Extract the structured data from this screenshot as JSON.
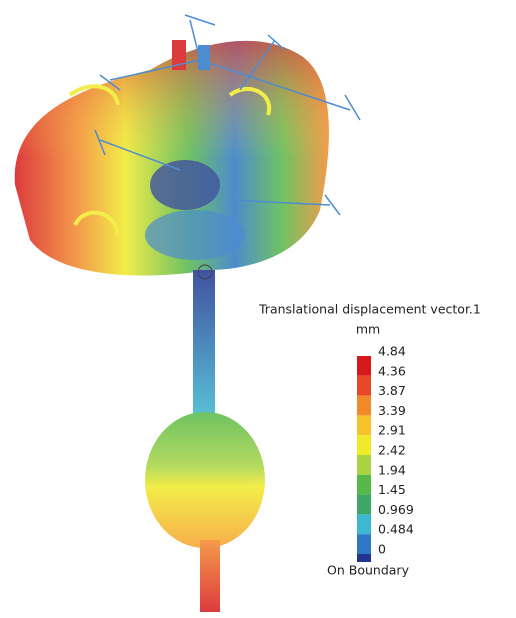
{
  "legend": {
    "title": "Translational displacement vector.1",
    "unit": "mm",
    "labels": [
      "4.84",
      "4.36",
      "3.87",
      "3.39",
      "2.91",
      "2.42",
      "1.94",
      "1.45",
      "0.969",
      "0.484",
      "0"
    ],
    "colors": [
      "#d7191c",
      "#e8482a",
      "#f28a2c",
      "#f7c12b",
      "#f0ea2a",
      "#a8d444",
      "#56b848",
      "#3ca766",
      "#3cb8d0",
      "#2f78c6",
      "#203490"
    ],
    "footer": "On Boundary"
  }
}
